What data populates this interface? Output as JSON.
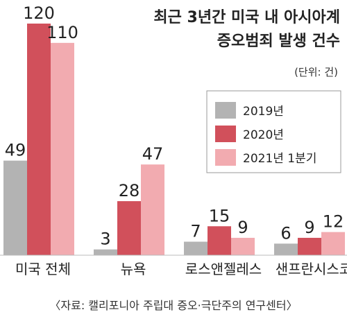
{
  "chart_data": {
    "type": "bar",
    "title_lines": [
      "최근 3년간 미국 내 아시아계",
      "증오범죄 발생 건수"
    ],
    "unit": "(단위: 건)",
    "categories": [
      "미국 전체",
      "뉴욕",
      "로스앤젤레스",
      "샌프란시스코"
    ],
    "series": [
      {
        "name": "2019년",
        "color": "#b3b3b3",
        "values": [
          49,
          3,
          7,
          6
        ]
      },
      {
        "name": "2020년",
        "color": "#d1505b",
        "values": [
          120,
          28,
          15,
          9
        ]
      },
      {
        "name": "2021년 1분기",
        "color": "#f2abb0",
        "values": [
          110,
          47,
          9,
          12
        ]
      }
    ],
    "source": "〈자료: 캘리포니아 주립대 증오·극단주의 연구센터〉",
    "grid": false,
    "legend_position": "right"
  }
}
